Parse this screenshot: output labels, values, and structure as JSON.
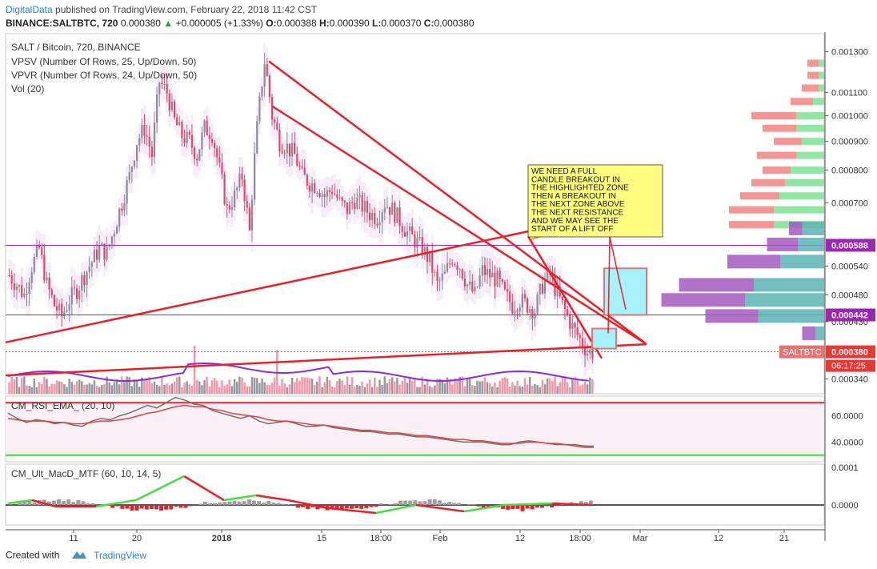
{
  "header": {
    "brand": "DigitalData",
    "published": "published on TradingView.com, February 22, 2018 11:42 CST"
  },
  "quote": {
    "symbol": "BINANCE:SALTBTC, 720",
    "last": "0.000380",
    "change": "+0.000005 (+1.33%)",
    "open_label": "O:",
    "open": "0.000388",
    "high_label": "H:",
    "high": "0.000390",
    "low_label": "L:",
    "low": "0.000370",
    "close_label": "C:",
    "close": "0.000380"
  },
  "footer": {
    "created_with": "Created with",
    "brand": "TradingView"
  },
  "chart_data": [
    {
      "type": "candlestick",
      "title": "SALT / Bitcoin, 720, BINANCE",
      "legend": [
        "VPSV (Number Of Rows, 25, Up/Down, 50)",
        "VPVR (Number Of Rows, 24, Up/Down, 50)",
        "Vol (20)"
      ],
      "y_scale": "log",
      "ylim": [
        0.00032,
        0.0014
      ],
      "y_ticks": [
        "0.001300",
        "0.001100",
        "0.001000",
        "0.000900",
        "0.000800",
        "0.000700",
        "0.000540",
        "0.000480",
        "0.000430",
        "0.000340"
      ],
      "x_ticks": [
        "11",
        "20",
        "2018",
        "15",
        "18:00",
        "Feb",
        "12",
        "18:00",
        "Mar",
        "12",
        "21"
      ],
      "price_markers": [
        {
          "label": "0.000588",
          "value": 0.000588,
          "color": "#9c27b0"
        },
        {
          "label": "0.000442",
          "value": 0.000442,
          "color": "#9c27b0"
        },
        {
          "label": "0.000380",
          "value": 0.00038,
          "color": "#e53935"
        }
      ],
      "symbol_tag": "SALTBTC",
      "countdown": "06:17:25",
      "close_path": [
        0.00052,
        0.0005,
        0.00048,
        0.00054,
        0.00058,
        0.0005,
        0.00046,
        0.00044,
        0.00047,
        0.00049,
        0.00052,
        0.00055,
        0.00058,
        0.00057,
        0.00063,
        0.0007,
        0.00078,
        0.0009,
        0.00095,
        0.00085,
        0.00115,
        0.0011,
        0.00098,
        0.00092,
        0.0009,
        0.00085,
        0.00095,
        0.00093,
        0.0008,
        0.00068,
        0.00072,
        0.00078,
        0.00062,
        0.00095,
        0.00125,
        0.001,
        0.0009,
        0.00088,
        0.00085,
        0.00078,
        0.00076,
        0.00075,
        0.00072,
        0.00074,
        0.0007,
        0.00068,
        0.00071,
        0.00069,
        0.00067,
        0.00066,
        0.0007,
        0.00068,
        0.00065,
        0.00062,
        0.0006,
        0.00058,
        0.00055,
        0.0005,
        0.00052,
        0.00056,
        0.00054,
        0.0005,
        0.00048,
        0.00053,
        0.00052,
        0.00051,
        0.00048,
        0.00046,
        0.00047,
        0.00046,
        0.00045,
        0.0005,
        0.00052,
        0.00048,
        0.00045,
        0.00042,
        0.0004,
        0.00038,
        0.00038
      ],
      "annotation": "WE NEED A FULL CANDLE BREAKOUT IN THE HIGHLIGHTED ZONE THEN A BREAKOUT IN THE NEXT ZONE ABOVE THE NEXT RESISTANCE AND WE MAY SEE THE START OF A LIFT OFF",
      "volume_profile_rows": [
        {
          "price": 0.00124,
          "up": 1,
          "down": 2
        },
        {
          "price": 0.00118,
          "up": 1,
          "down": 2
        },
        {
          "price": 0.00112,
          "up": 1,
          "down": 3
        },
        {
          "price": 0.00106,
          "up": 2,
          "down": 4
        },
        {
          "price": 0.001,
          "up": 5,
          "down": 8
        },
        {
          "price": 0.00095,
          "up": 5,
          "down": 6
        },
        {
          "price": 0.0009,
          "up": 4,
          "down": 5
        },
        {
          "price": 0.00085,
          "up": 5,
          "down": 7
        },
        {
          "price": 0.0008,
          "up": 6,
          "down": 5
        },
        {
          "price": 0.00076,
          "up": 7,
          "down": 6
        },
        {
          "price": 0.00072,
          "up": 8,
          "down": 7
        },
        {
          "price": 0.00068,
          "up": 9,
          "down": 8
        },
        {
          "price": 0.00064,
          "up": 9,
          "down": 8
        }
      ],
      "vpvr_rows": [
        {
          "price": 0.00063,
          "up": 5,
          "down": 3
        },
        {
          "price": 0.00059,
          "up": 6,
          "down": 7
        },
        {
          "price": 0.00055,
          "up": 10,
          "down": 12
        },
        {
          "price": 0.0005,
          "up": 16,
          "down": 17
        },
        {
          "price": 0.00047,
          "up": 18,
          "down": 19
        },
        {
          "price": 0.00044,
          "up": 15,
          "down": 12
        },
        {
          "price": 0.00041,
          "up": 2,
          "down": 3
        }
      ]
    },
    {
      "type": "line",
      "title": "CM_RSI_EMA_ (20, 10)",
      "y_ticks": [
        "60.0000",
        "40.0000"
      ],
      "levels": [
        70,
        30
      ],
      "rsi": [
        62,
        58,
        55,
        57,
        56,
        54,
        55,
        53,
        52,
        56,
        58,
        57,
        60,
        62,
        65,
        68,
        66,
        70,
        74,
        72,
        69,
        68,
        64,
        62,
        60,
        58,
        60,
        56,
        54,
        55,
        56,
        54,
        52,
        52,
        53,
        51,
        50,
        49,
        48,
        48,
        47,
        46,
        46,
        45,
        44,
        44,
        43,
        42,
        41,
        40,
        40,
        40,
        39,
        38,
        38,
        40,
        41,
        40,
        39,
        38,
        38,
        37,
        36,
        36
      ],
      "ema": [
        58,
        57,
        56,
        56,
        56,
        55,
        55,
        54,
        54,
        55,
        56,
        56,
        57,
        58,
        60,
        62,
        63,
        65,
        67,
        68,
        67,
        67,
        65,
        64,
        62,
        61,
        60,
        59,
        57,
        56,
        56,
        55,
        54,
        53,
        53,
        52,
        51,
        50,
        49,
        49,
        48,
        47,
        47,
        46,
        45,
        45,
        44,
        43,
        42,
        42,
        41,
        41,
        40,
        39,
        39,
        39,
        40,
        40,
        39,
        39,
        38,
        38,
        37,
        37
      ]
    },
    {
      "type": "histogram",
      "title": "CM_Ult_MacD_MTF (60, 10, 14, 5)",
      "y_ticks": [
        "0.0001",
        "0.0000"
      ]
    }
  ]
}
